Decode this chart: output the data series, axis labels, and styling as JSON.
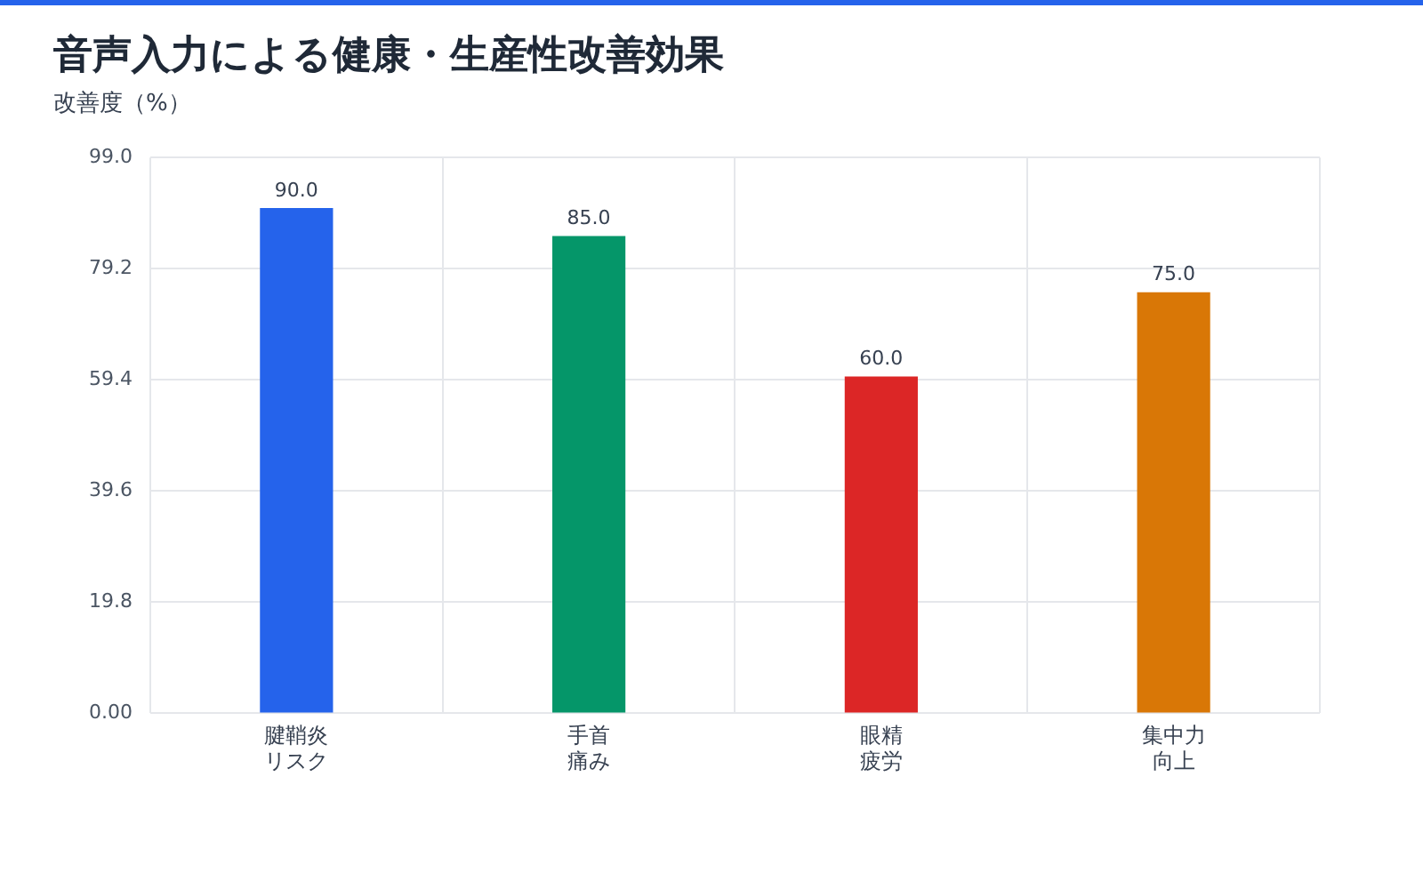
{
  "chart_data": {
    "type": "bar",
    "title": "音声入力による健康・生産性改善効果",
    "subtitle": "改善度（%）",
    "categories": [
      "腱鞘炎リスク",
      "手首痛み",
      "眼精疲労",
      "集中力向上"
    ],
    "values": [
      90,
      85,
      60,
      75
    ],
    "colors": [
      "#2563eb",
      "#059669",
      "#dc2626",
      "#d97706"
    ],
    "value_labels": [
      "90.0",
      "85.0",
      "60.0",
      "75.0"
    ],
    "ylim": [
      0,
      99
    ],
    "yticks": [
      {
        "value": 0,
        "label": "0.00"
      },
      19.8,
      39.6,
      59.4,
      79.2,
      {
        "value": 99,
        "label": "99.0"
      }
    ],
    "grid": true,
    "legend": false
  }
}
